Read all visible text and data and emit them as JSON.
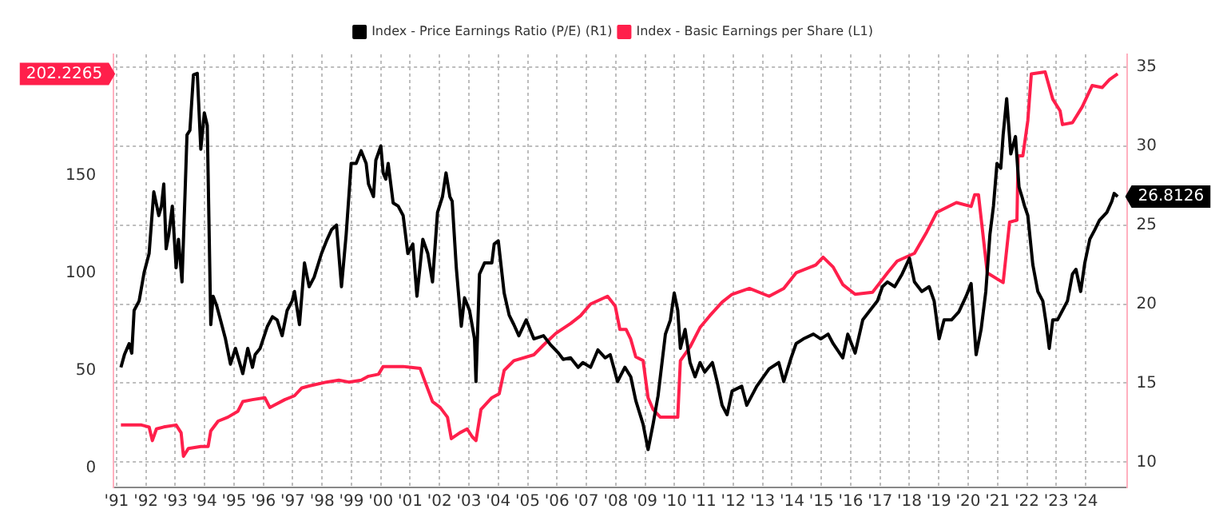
{
  "chart_data": {
    "type": "line",
    "xlim": [
      1990.9,
      2025.4
    ],
    "xticks": [
      {
        "value": 1991,
        "label": "'91"
      },
      {
        "value": 1992,
        "label": "'92"
      },
      {
        "value": 1993,
        "label": "'93"
      },
      {
        "value": 1994,
        "label": "'94"
      },
      {
        "value": 1995,
        "label": "'95"
      },
      {
        "value": 1996,
        "label": "'96"
      },
      {
        "value": 1997,
        "label": "'97"
      },
      {
        "value": 1998,
        "label": "'98"
      },
      {
        "value": 1999,
        "label": "'99"
      },
      {
        "value": 2000,
        "label": "'00"
      },
      {
        "value": 2001,
        "label": "'01"
      },
      {
        "value": 2002,
        "label": "'02"
      },
      {
        "value": 2003,
        "label": "'03"
      },
      {
        "value": 2004,
        "label": "'04"
      },
      {
        "value": 2005,
        "label": "'05"
      },
      {
        "value": 2006,
        "label": "'06"
      },
      {
        "value": 2007,
        "label": "'07"
      },
      {
        "value": 2008,
        "label": "'08"
      },
      {
        "value": 2009,
        "label": "'09"
      },
      {
        "value": 2010,
        "label": "'10"
      },
      {
        "value": 2011,
        "label": "'11"
      },
      {
        "value": 2012,
        "label": "'12"
      },
      {
        "value": 2013,
        "label": "'13"
      },
      {
        "value": 2014,
        "label": "'14"
      },
      {
        "value": 2015,
        "label": "'15"
      },
      {
        "value": 2016,
        "label": "'16"
      },
      {
        "value": 2017,
        "label": "'17"
      },
      {
        "value": 2018,
        "label": "'18"
      },
      {
        "value": 2019,
        "label": "'19"
      },
      {
        "value": 2020,
        "label": "'20"
      },
      {
        "value": 2021,
        "label": "'21"
      },
      {
        "value": 2022,
        "label": "'22"
      },
      {
        "value": 2023,
        "label": "'23"
      },
      {
        "value": 2024,
        "label": "'24"
      }
    ],
    "ylim": [
      -10,
      212
    ],
    "yticks": [
      0,
      50,
      100,
      150
    ],
    "y2lim": [
      8.4,
      35.8
    ],
    "y2ticks": [
      10,
      15,
      20,
      25,
      30,
      35
    ],
    "grid": true,
    "legend": "top",
    "marker": "none",
    "line_style": "solid",
    "annotations": [
      "26.8126",
      "202.2265"
    ],
    "series": [
      {
        "name": "Index - Price Earnings Ratio (P/E) (R1)",
        "color": "#000000",
        "axis": "y2",
        "x": [
          1991.15,
          1991.27,
          1991.43,
          1991.52,
          1991.6,
          1991.77,
          1991.94,
          1992.11,
          1992.27,
          1992.44,
          1992.53,
          1992.61,
          1992.69,
          1992.78,
          1992.9,
          1993.03,
          1993.11,
          1993.23,
          1993.33,
          1993.4,
          1993.5,
          1993.62,
          1993.75,
          1993.87,
          1993.99,
          1994.09,
          1994.21,
          1994.29,
          1994.41,
          1994.54,
          1994.71,
          1994.88,
          1995.05,
          1995.3,
          1995.47,
          1995.63,
          1995.72,
          1995.89,
          1996.14,
          1996.31,
          1996.47,
          1996.64,
          1996.81,
          1996.98,
          1997.06,
          1997.23,
          1997.4,
          1997.56,
          1997.73,
          1997.98,
          1998.15,
          1998.32,
          1998.49,
          1998.66,
          1998.82,
          1998.99,
          1999.16,
          1999.33,
          1999.5,
          1999.58,
          1999.75,
          1999.83,
          2000.0,
          2000.08,
          2000.17,
          2000.25,
          2000.42,
          2000.59,
          2000.76,
          2000.92,
          2001.09,
          2001.23,
          2001.43,
          2001.6,
          2001.76,
          2001.93,
          2002.1,
          2002.22,
          2002.35,
          2002.43,
          2002.57,
          2002.74,
          2002.85,
          2003.02,
          2003.19,
          2003.24,
          2003.36,
          2003.53,
          2003.78,
          2003.86,
          2004.0,
          2004.2,
          2004.37,
          2004.53,
          2004.7,
          2004.95,
          2005.21,
          2005.54,
          2005.79,
          2006.05,
          2006.21,
          2006.46,
          2006.72,
          2006.88,
          2007.14,
          2007.39,
          2007.64,
          2007.81,
          2008.06,
          2008.31,
          2008.51,
          2008.68,
          2008.93,
          2009.1,
          2009.27,
          2009.44,
          2009.69,
          2009.86,
          2009.99,
          2010.11,
          2010.2,
          2010.36,
          2010.53,
          2010.7,
          2010.87,
          2011.03,
          2011.29,
          2011.45,
          2011.62,
          2011.79,
          2011.96,
          2012.29,
          2012.46,
          2012.8,
          2013.22,
          2013.55,
          2013.72,
          2013.97,
          2014.14,
          2014.39,
          2014.73,
          2014.98,
          2015.23,
          2015.4,
          2015.73,
          2015.9,
          2016.15,
          2016.41,
          2016.74,
          2016.91,
          2017.08,
          2017.25,
          2017.5,
          2017.75,
          2018.0,
          2018.17,
          2018.42,
          2018.67,
          2018.84,
          2019.01,
          2019.18,
          2019.43,
          2019.68,
          2019.93,
          2020.1,
          2020.27,
          2020.44,
          2020.6,
          2020.74,
          2020.86,
          2020.98,
          2021.11,
          2021.19,
          2021.31,
          2021.45,
          2021.61,
          2021.73,
          2021.83,
          2021.92,
          2022.03,
          2022.2,
          2022.37,
          2022.54,
          2022.66,
          2022.76,
          2022.88,
          2023.04,
          2023.21,
          2023.38,
          2023.55,
          2023.67,
          2023.83,
          2023.97,
          2024.14,
          2024.31,
          2024.47,
          2024.72,
          2024.89,
          2024.97,
          2025.09
        ],
        "values": [
          16.0,
          16.8,
          17.5,
          16.9,
          19.6,
          20.2,
          22.0,
          23.2,
          27.1,
          25.6,
          26.2,
          27.6,
          23.5,
          24.4,
          26.2,
          22.3,
          24.1,
          21.4,
          26.8,
          30.7,
          31.0,
          34.5,
          34.6,
          29.8,
          32.1,
          31.3,
          18.7,
          20.5,
          19.9,
          19.0,
          17.8,
          16.2,
          17.2,
          15.6,
          17.2,
          16.0,
          16.8,
          17.2,
          18.6,
          19.2,
          19.0,
          18.0,
          19.6,
          20.2,
          20.8,
          18.7,
          22.6,
          21.1,
          21.7,
          23.2,
          24.0,
          24.7,
          25.0,
          21.1,
          24.4,
          28.9,
          28.9,
          29.7,
          28.9,
          27.6,
          26.8,
          29.1,
          30.0,
          28.3,
          27.9,
          28.9,
          26.4,
          26.2,
          25.6,
          23.2,
          23.8,
          20.5,
          24.1,
          23.2,
          21.4,
          25.8,
          26.8,
          28.3,
          26.8,
          26.5,
          22.3,
          18.6,
          20.4,
          19.6,
          17.8,
          15.1,
          21.9,
          22.6,
          22.6,
          23.8,
          24.0,
          20.7,
          19.3,
          18.7,
          18.0,
          19.0,
          17.8,
          18.0,
          17.4,
          16.9,
          16.5,
          16.6,
          16.0,
          16.3,
          16.0,
          17.1,
          16.6,
          16.8,
          15.1,
          16.0,
          15.4,
          13.9,
          12.4,
          10.8,
          12.4,
          14.2,
          18.1,
          19.0,
          20.7,
          19.6,
          17.2,
          18.4,
          16.3,
          15.4,
          16.3,
          15.7,
          16.3,
          15.1,
          13.6,
          13.0,
          14.5,
          14.8,
          13.6,
          14.8,
          15.9,
          16.3,
          15.1,
          16.6,
          17.5,
          17.8,
          18.1,
          17.8,
          18.1,
          17.5,
          16.6,
          18.1,
          16.9,
          19.0,
          19.8,
          20.2,
          21.1,
          21.4,
          21.1,
          21.9,
          22.9,
          21.4,
          20.8,
          21.1,
          20.2,
          17.8,
          19.0,
          19.0,
          19.5,
          20.5,
          21.3,
          16.8,
          18.4,
          20.8,
          24.4,
          26.2,
          28.9,
          28.6,
          30.7,
          33.0,
          29.5,
          30.6,
          27.4,
          26.8,
          26.2,
          25.6,
          22.5,
          20.8,
          20.2,
          18.7,
          17.2,
          19.0,
          19.0,
          19.6,
          20.2,
          21.9,
          22.2,
          20.8,
          22.6,
          24.1,
          24.7,
          25.3,
          25.8,
          26.5,
          27.0,
          26.8
        ]
      },
      {
        "name": "Index - Basic Earnings per Share (L1)",
        "color": "#ff1f4b",
        "x": [
          1991.15,
          1991.85,
          1992.11,
          1992.22,
          1992.36,
          1992.61,
          1993.03,
          1993.2,
          1993.28,
          1993.45,
          1993.87,
          1994.12,
          1994.21,
          1994.46,
          1994.79,
          1995.13,
          1995.3,
          1995.63,
          1996.05,
          1996.22,
          1996.73,
          1997.06,
          1997.31,
          1997.56,
          1998.15,
          1998.57,
          1998.91,
          1999.33,
          1999.58,
          1999.92,
          2000.08,
          2000.76,
          2001.34,
          2001.51,
          2001.76,
          2002.02,
          2002.27,
          2002.4,
          2002.69,
          2002.94,
          2003.11,
          2003.24,
          2003.41,
          2003.78,
          2004.03,
          2004.2,
          2004.53,
          2005.21,
          2005.54,
          2005.96,
          2006.46,
          2006.8,
          2007.14,
          2007.72,
          2007.98,
          2008.14,
          2008.35,
          2008.51,
          2008.68,
          2008.93,
          2009.1,
          2009.27,
          2009.52,
          2010.11,
          2010.2,
          2010.53,
          2010.87,
          2011.2,
          2011.62,
          2011.96,
          2012.55,
          2013.22,
          2013.72,
          2014.14,
          2014.81,
          2015.06,
          2015.4,
          2015.73,
          2016.15,
          2016.74,
          2017.25,
          2017.58,
          2018.17,
          2018.59,
          2018.93,
          2019.6,
          2020.1,
          2020.22,
          2020.35,
          2020.65,
          2021.19,
          2021.41,
          2021.66,
          2021.7,
          2021.86,
          2022.03,
          2022.15,
          2022.62,
          2022.88,
          2023.13,
          2023.21,
          2023.55,
          2023.88,
          2024.22,
          2024.56,
          2024.81,
          2025.09
        ],
        "values": [
          22,
          22,
          21,
          14,
          20,
          21,
          22,
          18,
          6,
          10,
          11,
          11,
          19,
          24,
          26,
          29,
          34,
          35,
          36,
          31,
          35,
          37,
          41,
          42,
          44,
          45,
          44,
          45,
          47,
          48,
          52,
          52,
          51,
          44,
          34,
          31,
          26,
          15,
          18,
          20,
          16,
          14,
          30,
          36,
          38,
          50,
          55,
          58,
          63,
          69,
          74,
          78,
          84,
          88,
          83,
          71,
          71,
          66,
          57,
          55,
          36,
          30,
          26,
          26,
          55,
          62,
          72,
          78,
          85,
          89,
          92,
          88,
          92,
          100,
          104,
          108,
          103,
          94,
          89,
          90,
          100,
          106,
          110,
          121,
          131,
          136,
          134,
          140,
          140,
          100,
          95,
          126,
          127,
          160,
          160,
          178,
          202,
          203,
          189,
          183,
          176,
          177,
          185,
          196,
          195,
          199,
          202
        ]
      }
    ]
  }
}
